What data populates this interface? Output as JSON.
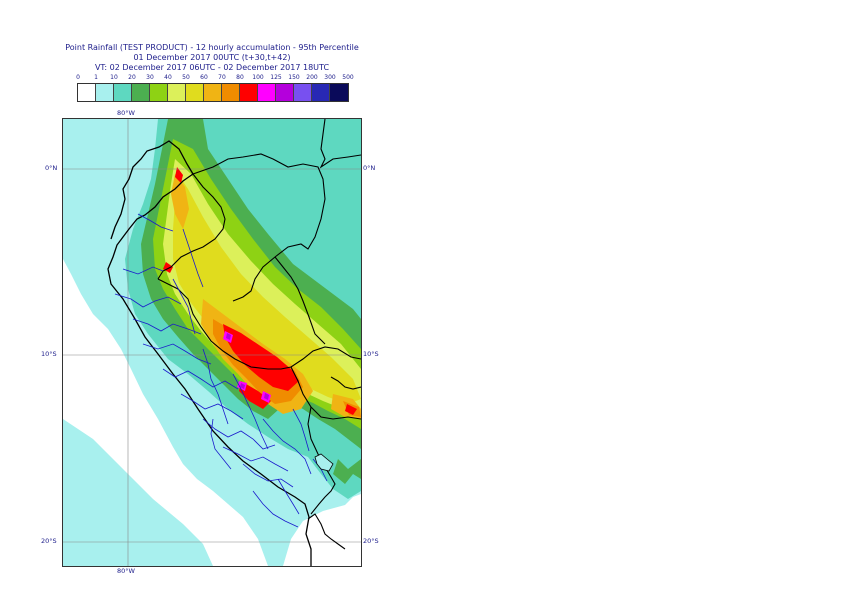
{
  "title": {
    "line1": "Point Rainfall (TEST PRODUCT) - 12 hourly accumulation - 95th Percentile",
    "line2": "01 December 2017 00UTC (t+30,t+42)",
    "line3": "VT: 02 December 2017 06UTC - 02 December 2017 18UTC"
  },
  "legend": {
    "ticks": [
      "0",
      "1",
      "10",
      "20",
      "30",
      "40",
      "50",
      "60",
      "70",
      "80",
      "100",
      "125",
      "150",
      "200",
      "300",
      "500"
    ],
    "colors": [
      "#ffffff",
      "#a8f0ee",
      "#5ed8c0",
      "#4caf50",
      "#8ed214",
      "#dcf05a",
      "#e0dc1e",
      "#f0b414",
      "#f08c00",
      "#ff0000",
      "#ff00ff",
      "#b400dc",
      "#7850f0",
      "#2828b4",
      "#0a0a5a"
    ]
  },
  "map": {
    "lon_labels": [
      "80°W",
      "80°W"
    ],
    "lat_labels_left": [
      "0°N",
      "10°S",
      "20°S"
    ],
    "lat_labels_right": [
      "0°N",
      "10°S",
      "20°S"
    ],
    "colors": {
      "sea": "#ffffff",
      "light": "#a8f0ee",
      "teal": "#5ed8c0",
      "green": "#4caf50",
      "lime": "#8ed214",
      "yellow": "#dcf05a",
      "gold": "#e0dc1e",
      "orange": "#f0b414",
      "darkorange": "#f08c00",
      "red": "#ff0000",
      "magenta": "#ff00ff",
      "purple": "#b400dc",
      "coast": "#000000",
      "admin": "#1a1acc",
      "grid": "#888888"
    }
  }
}
